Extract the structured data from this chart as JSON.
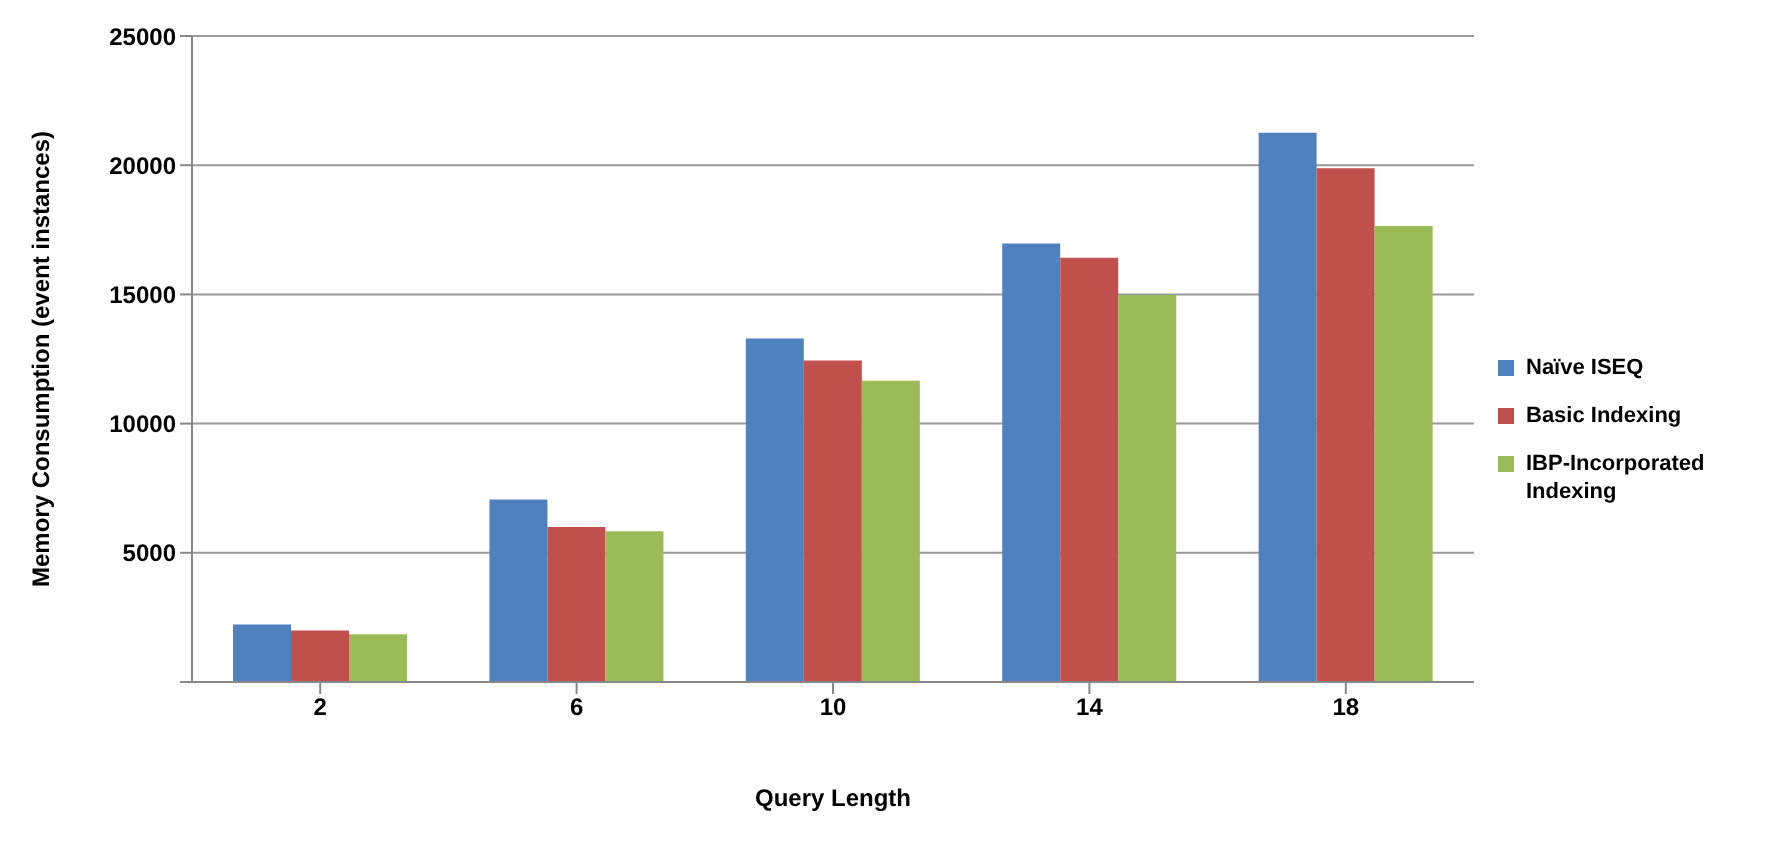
{
  "chart_data": {
    "type": "bar",
    "xlabel": "Query Length",
    "ylabel": "Memory  Consumption  (event  instances)",
    "categories": [
      "2",
      "6",
      "10",
      "14",
      "18"
    ],
    "series": [
      {
        "name": "Naïve ISEQ",
        "color": "#4f81bd",
        "values": [
          2230,
          7060,
          13290,
          16970,
          21260
        ]
      },
      {
        "name": "Basic Indexing",
        "color": "#c0504d",
        "values": [
          1990,
          6000,
          12440,
          16420,
          19880
        ]
      },
      {
        "name": "IBP-Incorporated Indexing",
        "color": "#9bbb59",
        "values": [
          1850,
          5830,
          11660,
          14980,
          17650
        ]
      }
    ],
    "ylim": [
      0,
      25000
    ],
    "yticks": [
      {
        "value": 0,
        "label": null
      },
      5000,
      10000,
      15000,
      20000,
      25000
    ],
    "grid": "y",
    "legend": "right"
  }
}
